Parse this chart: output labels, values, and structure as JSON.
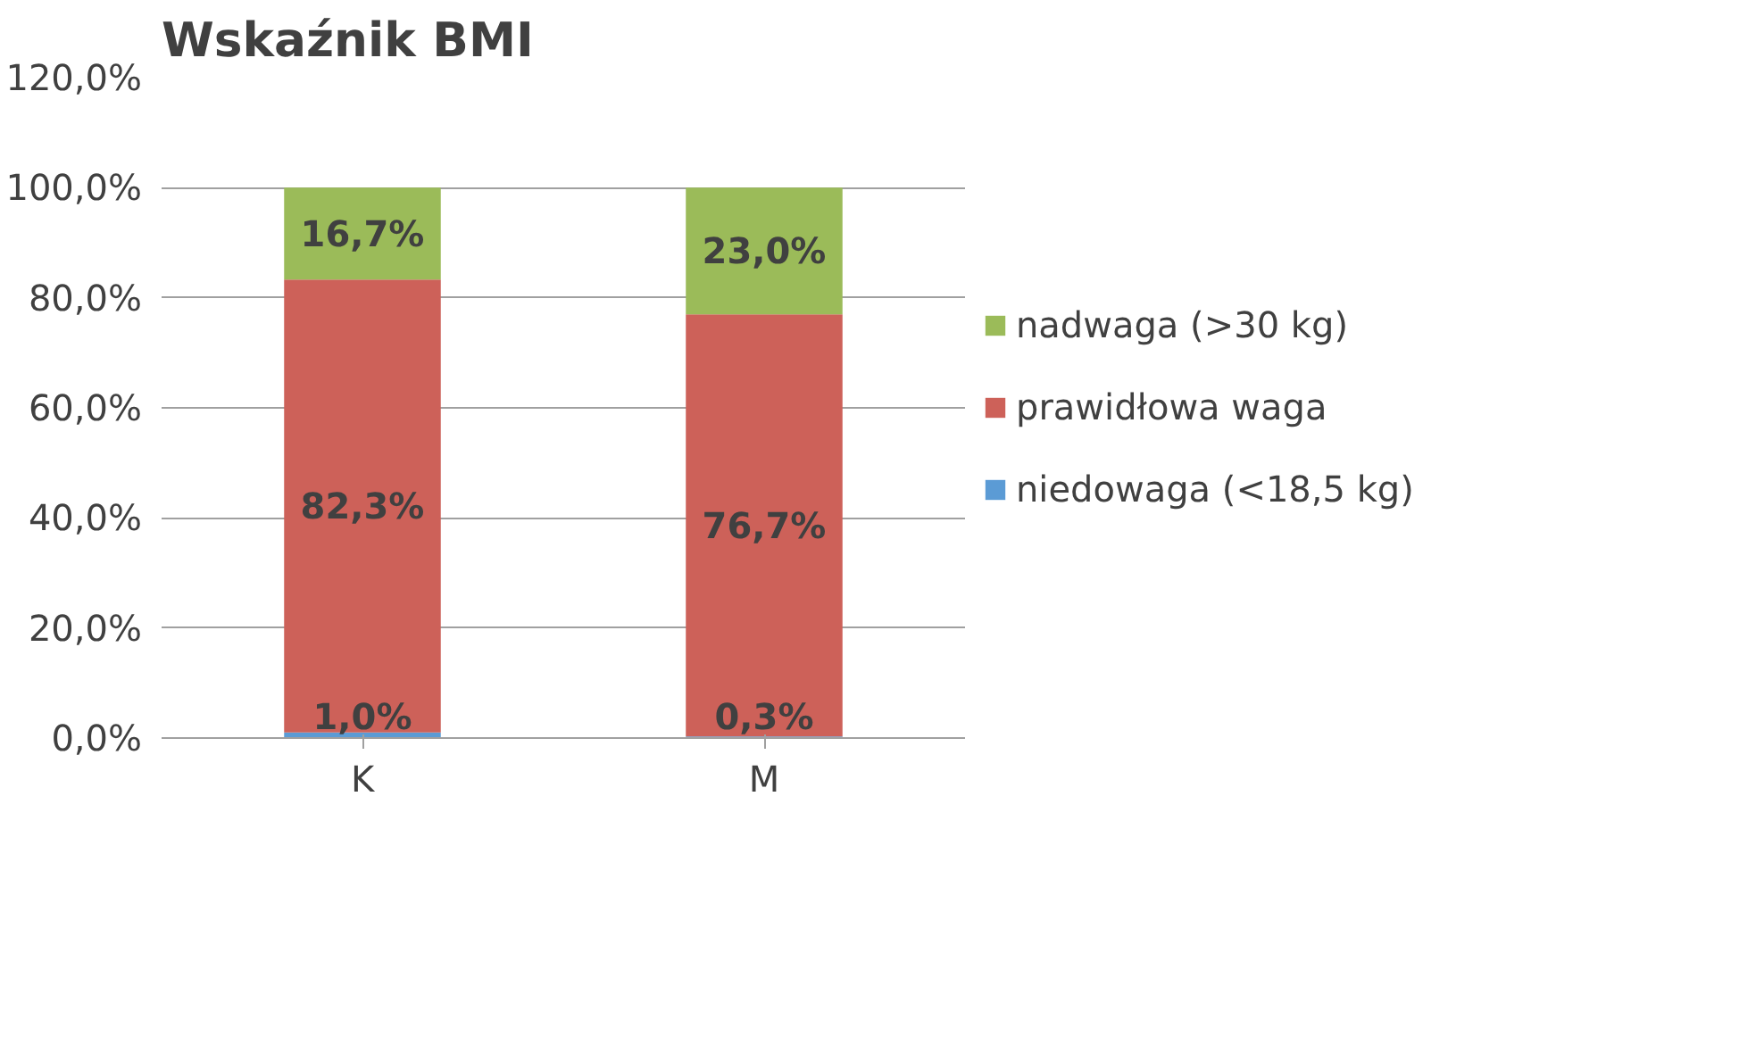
{
  "chart_data": {
    "type": "bar",
    "title": "Wskaźnik BMI",
    "stacked": true,
    "categories": [
      "K",
      "M"
    ],
    "series": [
      {
        "name": "niedowaga (<18,5 kg)",
        "color": "#5b9bd5",
        "values": [
          1.0,
          0.3
        ],
        "value_labels": [
          "1,0%",
          "0,3%"
        ]
      },
      {
        "name": "prawidłowa waga",
        "color": "#cd6159",
        "values": [
          82.3,
          76.7
        ],
        "value_labels": [
          "82,3%",
          "76,7%"
        ]
      },
      {
        "name": "nadwaga (>30 kg)",
        "color": "#9bbb59",
        "values": [
          16.7,
          23.0
        ],
        "value_labels": [
          "16,7%",
          "23,0%"
        ]
      }
    ],
    "ylim": [
      0,
      120
    ],
    "yticks": [
      {
        "value": 0,
        "label": "0,0%"
      },
      {
        "value": 20,
        "label": "20,0%"
      },
      {
        "value": 40,
        "label": "40,0%"
      },
      {
        "value": 60,
        "label": "60,0%"
      },
      {
        "value": 80,
        "label": "80,0%"
      },
      {
        "value": 100,
        "label": "100,0%"
      },
      {
        "value": 120,
        "label": "120,0%"
      }
    ],
    "grid": "y",
    "legend": "right"
  }
}
